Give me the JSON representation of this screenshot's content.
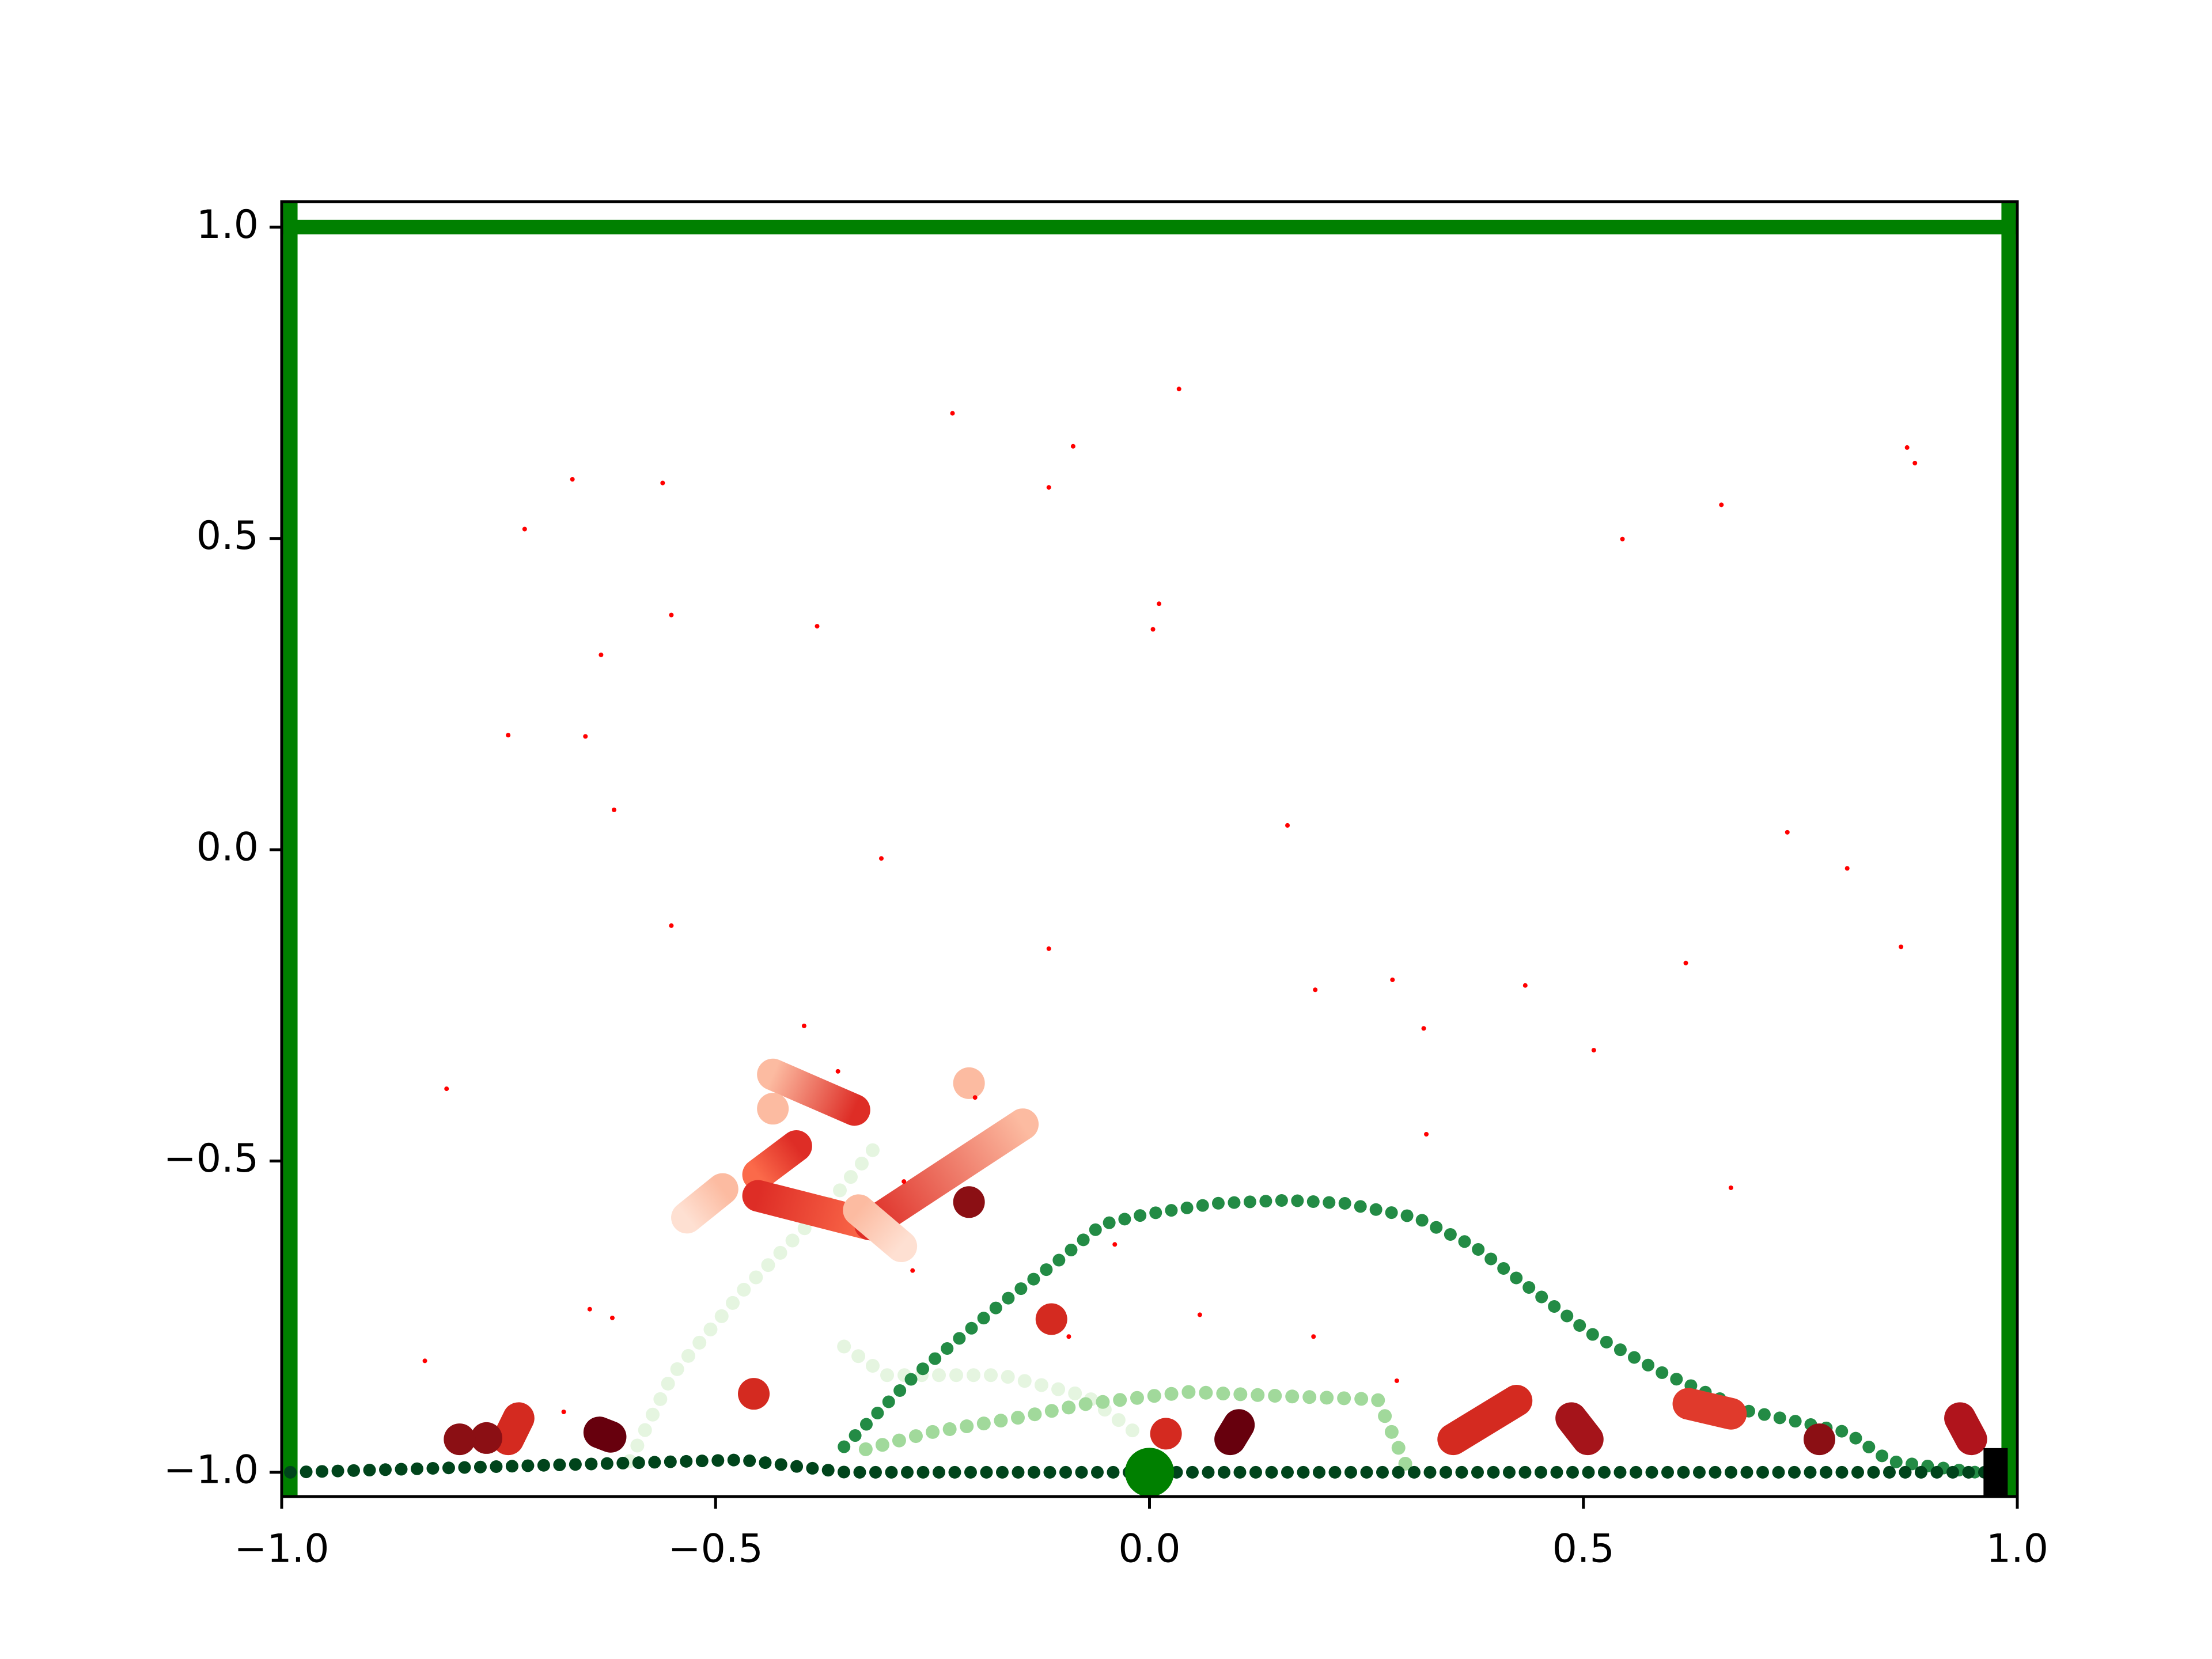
{
  "chart_data": {
    "type": "scatter",
    "xlim": [
      -1.0,
      1.0
    ],
    "ylim": [
      -1.039,
      1.041
    ],
    "xticks": [
      {
        "value": -1.0,
        "label": "−1.0"
      },
      {
        "value": -0.5,
        "label": "−0.5"
      },
      {
        "value": 0.0,
        "label": "0.0"
      },
      {
        "value": 0.5,
        "label": "0.5"
      },
      {
        "value": 1.0,
        "label": "1.0"
      }
    ],
    "yticks": [
      {
        "value": -1.0,
        "label": "−1.0"
      },
      {
        "value": -0.5,
        "label": "−0.5"
      },
      {
        "value": 0.0,
        "label": "0.0"
      },
      {
        "value": 0.5,
        "label": "0.5"
      },
      {
        "value": 1.0,
        "label": "1.0"
      }
    ],
    "series": [
      {
        "mode": "line",
        "color": "#008000",
        "size": 25,
        "x": [
          -0.99,
          -0.99
        ],
        "values": [
          -1.039,
          1.041
        ]
      },
      {
        "mode": "line",
        "color": "#008000",
        "size": 25,
        "x": [
          0.99,
          0.99
        ],
        "values": [
          -1.039,
          1.041
        ]
      },
      {
        "mode": "line",
        "color": "#008000",
        "size": 25,
        "x": [
          -1.0,
          1.0
        ],
        "values": [
          1.0,
          1.0
        ]
      },
      {
        "mode": "dotted",
        "color": "#e5f5e0",
        "size": 24,
        "x": [
          -0.599,
          -0.55,
          -0.467,
          -0.369,
          -0.311
        ],
        "values": [
          -0.982,
          -0.844,
          -0.706,
          -0.568,
          -0.469
        ]
      },
      {
        "mode": "dotted",
        "color": "#e5f5e0",
        "size": 24,
        "x": [
          -0.352,
          -0.303,
          -0.171,
          -0.072,
          -0.006
        ],
        "values": [
          -0.798,
          -0.844,
          -0.844,
          -0.878,
          -0.947
        ]
      },
      {
        "mode": "dotted",
        "color": "#a1d99b",
        "size": 24,
        "x": [
          -0.327,
          -0.253,
          -0.154,
          -0.072,
          0.044,
          0.159,
          0.263,
          0.299
        ],
        "values": [
          -0.963,
          -0.936,
          -0.913,
          -0.89,
          -0.871,
          -0.878,
          -0.883,
          -1.0
        ]
      },
      {
        "mode": "dotted",
        "color": "#238b45",
        "size": 22,
        "x": [
          -0.352,
          -0.27,
          -0.171,
          -0.105,
          -0.055,
          -0.006,
          0.077,
          0.159,
          0.225,
          0.308,
          0.374,
          0.44,
          0.506,
          0.589,
          0.688,
          0.804,
          0.853,
          0.952
        ],
        "values": [
          -0.959,
          -0.844,
          -0.729,
          -0.66,
          -0.602,
          -0.586,
          -0.568,
          -0.563,
          -0.568,
          -0.591,
          -0.637,
          -0.706,
          -0.775,
          -0.839,
          -0.901,
          -0.936,
          -0.982,
          -1.0
        ]
      },
      {
        "mode": "dotted",
        "color": "#00441b",
        "size": 22,
        "x": [
          -0.99,
          -0.47,
          -0.35,
          0.97
        ],
        "values": [
          -1.0,
          -0.98,
          -1.0,
          -1.0
        ]
      },
      {
        "mode": "line",
        "color": "#fcbba1",
        "color_end": "#de2d26",
        "size": 55,
        "x": [
          -0.434,
          -0.34
        ],
        "values": [
          -0.361,
          -0.418
        ]
      },
      {
        "mode": "line",
        "color": "#fb6a4a",
        "color_end": "#de2d26",
        "size": 55,
        "x": [
          -0.451,
          -0.407
        ],
        "values": [
          -0.522,
          -0.476
        ]
      },
      {
        "mode": "line",
        "color": "#fee0d2",
        "color_end": "#fcbba1",
        "size": 55,
        "x": [
          -0.533,
          -0.492
        ],
        "values": [
          -0.591,
          -0.545
        ]
      },
      {
        "mode": "line",
        "color": "#de2d26",
        "color_end": "#fb6a4a",
        "size": 55,
        "x": [
          -0.451,
          -0.322
        ],
        "values": [
          -0.556,
          -0.602
        ]
      },
      {
        "mode": "line",
        "color": "#de2d26",
        "color_end": "#fcbba1",
        "size": 55,
        "x": [
          -0.322,
          -0.146
        ],
        "values": [
          -0.602,
          -0.441
        ]
      },
      {
        "mode": "line",
        "color": "#fcbba1",
        "color_end": "#fee0d2",
        "size": 55,
        "x": [
          -0.335,
          -0.286
        ],
        "values": [
          -0.579,
          -0.637
        ]
      },
      {
        "mode": "line",
        "color": "#67000d",
        "color_end": "#67000d",
        "size": 55,
        "x": [
          -0.634,
          -0.621
        ],
        "values": [
          -0.936,
          -0.943
        ]
      },
      {
        "mode": "line",
        "color": "#d42a20",
        "color_end": "#d42a20",
        "size": 55,
        "x": [
          -0.727,
          -0.739
        ],
        "values": [
          -0.913,
          -0.947
        ]
      },
      {
        "mode": "line",
        "color": "#67000d",
        "color_end": "#67000d",
        "size": 55,
        "x": [
          0.103,
          0.093
        ],
        "values": [
          -0.924,
          -0.947
        ]
      },
      {
        "mode": "line",
        "color": "#d42a20",
        "color_end": "#d42a20",
        "size": 55,
        "x": [
          0.35,
          0.423
        ],
        "values": [
          -0.947,
          -0.885
        ]
      },
      {
        "mode": "line",
        "color": "#a5141a",
        "color_end": "#a5141a",
        "size": 55,
        "x": [
          0.486,
          0.505
        ],
        "values": [
          -0.913,
          -0.947
        ]
      },
      {
        "mode": "line",
        "color": "#e03a2c",
        "color_end": "#e03a2c",
        "size": 55,
        "x": [
          0.621,
          0.67
        ],
        "values": [
          -0.89,
          -0.906
        ]
      },
      {
        "mode": "line",
        "color": "#b0141c",
        "color_end": "#b0141c",
        "size": 55,
        "x": [
          0.934,
          0.947
        ],
        "values": [
          -0.913,
          -0.947
        ]
      },
      {
        "mode": "markers",
        "color": "#fcbba1",
        "size": 55,
        "x": [
          -0.208,
          -0.434
        ],
        "values": [
          -0.375,
          -0.416
        ]
      },
      {
        "mode": "markers",
        "color": "#d42a20",
        "size": 55,
        "x": [
          -0.113,
          -0.456,
          0.019
        ],
        "values": [
          -0.754,
          -0.874,
          -0.938
        ]
      },
      {
        "mode": "markers",
        "color": "#8b0f14",
        "size": 55,
        "x": [
          -0.208,
          0.772,
          -0.764,
          -0.795
        ],
        "values": [
          -0.566,
          -0.947,
          -0.945,
          -0.947
        ]
      },
      {
        "mode": "markers",
        "color": "#ff0000",
        "size": 8,
        "x": [
          0.034,
          -0.227,
          -0.088,
          -0.665,
          -0.561,
          -0.116,
          -0.72,
          0.545,
          0.659,
          0.873,
          0.882,
          -0.551,
          -0.383,
          0.011,
          0.004,
          -0.632,
          -0.739,
          -0.65,
          -0.617,
          -0.309,
          0.159,
          0.735,
          0.804,
          -0.551,
          -0.116,
          0.618,
          0.866,
          0.191,
          0.28,
          0.433,
          0.316,
          0.512,
          -0.398,
          -0.81,
          -0.359,
          -0.201,
          0.319,
          0.67,
          -0.283,
          -0.04,
          -0.273,
          0.058,
          -0.645,
          -0.619,
          -0.093,
          0.189,
          -0.835,
          -0.675,
          0.285
        ],
        "values": [
          0.74,
          0.701,
          0.648,
          0.595,
          0.589,
          0.582,
          0.515,
          0.499,
          0.554,
          0.646,
          0.621,
          0.377,
          0.359,
          0.395,
          0.354,
          0.313,
          0.184,
          0.182,
          0.064,
          -0.014,
          0.039,
          0.028,
          -0.03,
          -0.122,
          -0.159,
          -0.182,
          -0.156,
          -0.225,
          -0.209,
          -0.218,
          -0.287,
          -0.322,
          -0.283,
          -0.384,
          -0.356,
          -0.398,
          -0.457,
          -0.543,
          -0.533,
          -0.634,
          -0.676,
          -0.747,
          -0.738,
          -0.752,
          -0.782,
          -0.782,
          -0.821,
          -0.903,
          -0.853
        ]
      },
      {
        "mode": "markers",
        "color": "#008000",
        "size": 85,
        "x": [
          0.0
        ],
        "values": [
          -1.0
        ]
      },
      {
        "mode": "markers",
        "marker": "square",
        "color": "#000000",
        "size": 42,
        "x": [
          0.975
        ],
        "values": [
          -1.0
        ]
      }
    ]
  }
}
